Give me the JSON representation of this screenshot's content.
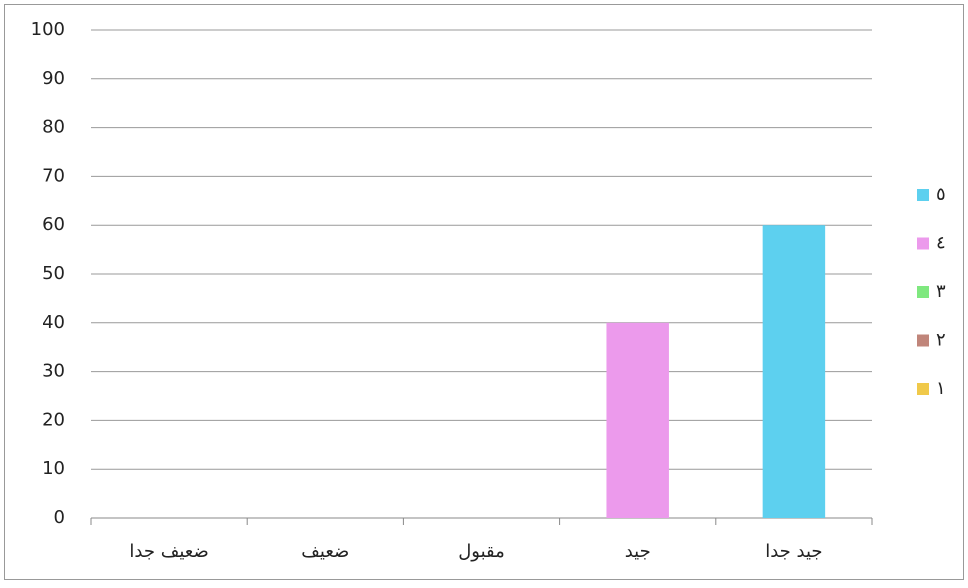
{
  "chart_data": {
    "type": "stacked_bar",
    "categories": [
      "ضعيف جدا",
      "ضعيف",
      "مقبول",
      "جيد",
      "جيد جدا"
    ],
    "series": [
      {
        "name": "١",
        "color": "#f0c94a",
        "values": [
          0,
          0,
          0,
          0,
          0
        ]
      },
      {
        "name": "٢",
        "color": "#c0857a",
        "values": [
          0,
          0,
          0,
          0,
          0
        ]
      },
      {
        "name": "٣",
        "color": "#7fe87f",
        "values": [
          0,
          0,
          0,
          0,
          0
        ]
      },
      {
        "name": "٤",
        "color": "#ec9aec",
        "values": [
          0,
          0,
          0,
          40,
          0
        ]
      },
      {
        "name": "٥",
        "color": "#5dd0ef",
        "values": [
          0,
          0,
          0,
          0,
          60
        ]
      }
    ],
    "ylim": [
      0,
      100
    ],
    "yticks": [
      0,
      10,
      20,
      30,
      40,
      50,
      60,
      70,
      80,
      90,
      100
    ],
    "grid": true,
    "legend": "right"
  }
}
